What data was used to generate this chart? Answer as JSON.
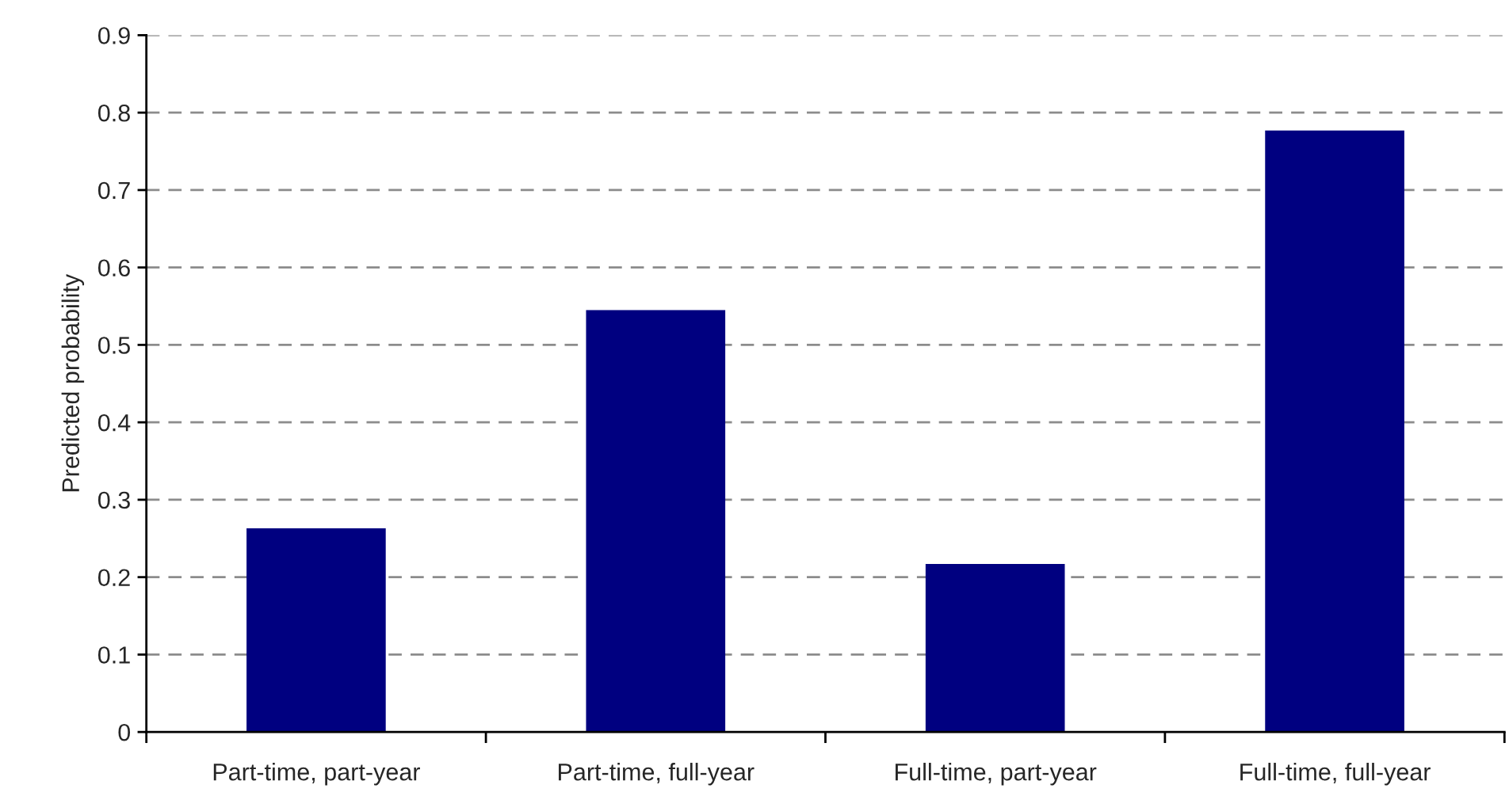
{
  "chart_data": {
    "type": "bar",
    "ylabel": "Predicted probability",
    "categories": [
      "Part-time, part-year",
      "Part-time, full-year",
      "Full-time, part-year",
      "Full-time, full-year"
    ],
    "values": [
      0.263,
      0.545,
      0.217,
      0.777
    ],
    "color": "#000080",
    "ylim": [
      0,
      0.9
    ],
    "yticks": [
      0,
      0.1,
      0.2,
      0.3,
      0.4,
      0.5,
      0.6,
      0.7,
      0.8,
      0.9
    ],
    "grid": "y"
  }
}
